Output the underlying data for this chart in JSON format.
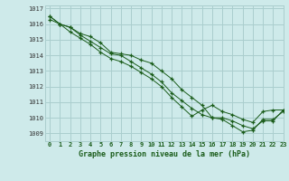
{
  "title": "Graphe pression niveau de la mer (hPa)",
  "bg_color": "#ceeaea",
  "grid_color": "#aacece",
  "line_color": "#1a5c1a",
  "xlim": [
    -0.5,
    23
  ],
  "ylim": [
    1008.5,
    1017.2
  ],
  "yticks": [
    1009,
    1010,
    1011,
    1012,
    1013,
    1014,
    1015,
    1016,
    1017
  ],
  "xticks": [
    0,
    1,
    2,
    3,
    4,
    5,
    6,
    7,
    8,
    9,
    10,
    11,
    12,
    13,
    14,
    15,
    16,
    17,
    18,
    19,
    20,
    21,
    22,
    23
  ],
  "series1": [
    1016.5,
    1016.0,
    1015.8,
    1015.4,
    1015.2,
    1014.8,
    1014.2,
    1014.1,
    1014.0,
    1013.7,
    1013.5,
    1013.0,
    1012.5,
    1011.8,
    1011.3,
    1010.8,
    1010.0,
    1009.9,
    1009.5,
    1009.1,
    1009.2,
    1009.9,
    1009.9,
    1010.4
  ],
  "series2": [
    1016.5,
    1016.0,
    1015.8,
    1015.3,
    1014.9,
    1014.5,
    1014.1,
    1014.0,
    1013.6,
    1013.2,
    1012.8,
    1012.3,
    1011.6,
    1011.1,
    1010.6,
    1010.2,
    1010.0,
    1010.0,
    1009.8,
    1009.5,
    1009.3,
    1009.8,
    1009.8,
    1010.5
  ],
  "series3": [
    1016.3,
    1016.0,
    1015.5,
    1015.1,
    1014.7,
    1014.2,
    1013.8,
    1013.6,
    1013.3,
    1012.9,
    1012.5,
    1012.0,
    1011.3,
    1010.7,
    1010.1,
    1010.5,
    1010.8,
    1010.4,
    1010.2,
    1009.9,
    1009.7,
    1010.4,
    1010.5,
    1010.5
  ]
}
